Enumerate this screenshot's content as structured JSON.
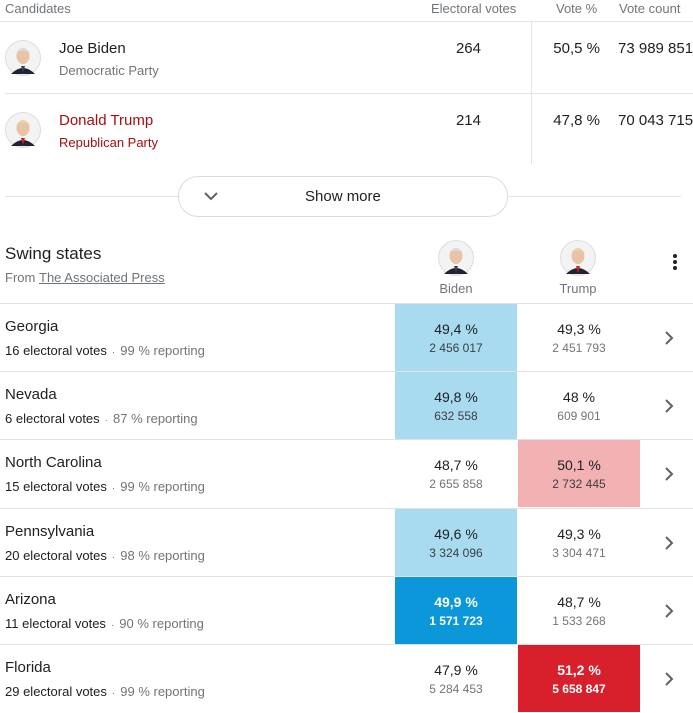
{
  "candidates_table": {
    "headers": [
      "Candidates",
      "Electoral votes",
      "Vote %",
      "Vote count"
    ],
    "rows": [
      {
        "name": "Joe Biden",
        "party": "Democratic Party",
        "electoral_votes": 264,
        "vote_pct": "50,5 %",
        "vote_count": "73 989 851",
        "color": "#202124",
        "party_color": "#70757a"
      },
      {
        "name": "Donald Trump",
        "party": "Republican Party",
        "electoral_votes": 214,
        "vote_pct": "47,8 %",
        "vote_count": "70 043 715",
        "color": "#a50e0e",
        "party_color": "#a50e0e"
      }
    ]
  },
  "show_more": "Show more",
  "swing_states": {
    "title": "Swing states",
    "source_prefix": "From",
    "source": "The Associated Press",
    "columns": [
      "Biden",
      "Trump"
    ],
    "rows": [
      {
        "state": "Georgia",
        "electoral_votes": "16 electoral votes",
        "reporting": "99 % reporting",
        "biden": {
          "pct": "49,4 %",
          "votes": "2 456 017",
          "color": "#a8daf0"
        },
        "trump": {
          "pct": "49,3 %",
          "votes": "2 451 793"
        }
      },
      {
        "state": "Nevada",
        "electoral_votes": "6 electoral votes",
        "reporting": "87 % reporting",
        "biden": {
          "pct": "49,8 %",
          "votes": "632 558",
          "color": "#a8daf0"
        },
        "trump": {
          "pct": "48 %",
          "votes": "609 901"
        }
      },
      {
        "state": "North Carolina",
        "electoral_votes": "15 electoral votes",
        "reporting": "99 % reporting",
        "biden": {
          "pct": "48,7 %",
          "votes": "2 655 858"
        },
        "trump": {
          "pct": "50,1 %",
          "votes": "2 732 445",
          "color": "#f2b2b4"
        }
      },
      {
        "state": "Pennsylvania",
        "electoral_votes": "20 electoral votes",
        "reporting": "98 % reporting",
        "biden": {
          "pct": "49,6 %",
          "votes": "3 324 096",
          "color": "#a8daf0"
        },
        "trump": {
          "pct": "49,3 %",
          "votes": "3 304 471"
        }
      },
      {
        "state": "Arizona",
        "electoral_votes": "11 electoral votes",
        "reporting": "90 % reporting",
        "biden": {
          "pct": "49,9 %",
          "votes": "1 571 723",
          "color": "#0b97d9",
          "strong": true
        },
        "trump": {
          "pct": "48,7 %",
          "votes": "1 533 268"
        }
      },
      {
        "state": "Florida",
        "electoral_votes": "29 electoral votes",
        "reporting": "99 % reporting",
        "biden": {
          "pct": "47,9 %",
          "votes": "5 284 453"
        },
        "trump": {
          "pct": "51,2 %",
          "votes": "5 658 847",
          "color": "#d8202c",
          "strong": true
        }
      }
    ]
  }
}
